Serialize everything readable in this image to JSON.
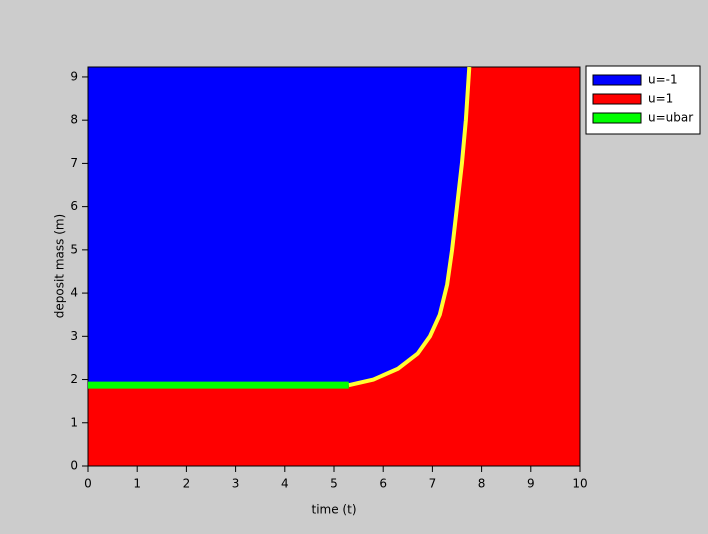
{
  "chart_data": {
    "type": "line",
    "xlabel": "time (t)",
    "ylabel": "deposit mass (m)",
    "xlim": [
      0,
      10
    ],
    "ylim": [
      0,
      9.23
    ],
    "xticks": [
      0,
      1,
      2,
      3,
      4,
      5,
      6,
      7,
      8,
      9,
      10
    ],
    "yticks": [
      0,
      1,
      2,
      3,
      4,
      5,
      6,
      7,
      8,
      9
    ],
    "legend": "outside-right",
    "series": [
      {
        "name": "u=-1",
        "color": "#0000ff"
      },
      {
        "name": "u=1",
        "color": "#ff0000"
      },
      {
        "name": "u=ubar",
        "color": "#00ff00",
        "x": [
          0,
          5.3
        ],
        "values": [
          1.87,
          1.87
        ]
      }
    ],
    "switching_curve": {
      "color": "#ffff33",
      "x": [
        5.3,
        5.8,
        6.3,
        6.7,
        6.95,
        7.15,
        7.3,
        7.4,
        7.5,
        7.6,
        7.68,
        7.75
      ],
      "values": [
        1.87,
        2.0,
        2.25,
        2.6,
        3.0,
        3.5,
        4.2,
        5.0,
        6.0,
        7.0,
        8.0,
        9.23
      ]
    }
  }
}
